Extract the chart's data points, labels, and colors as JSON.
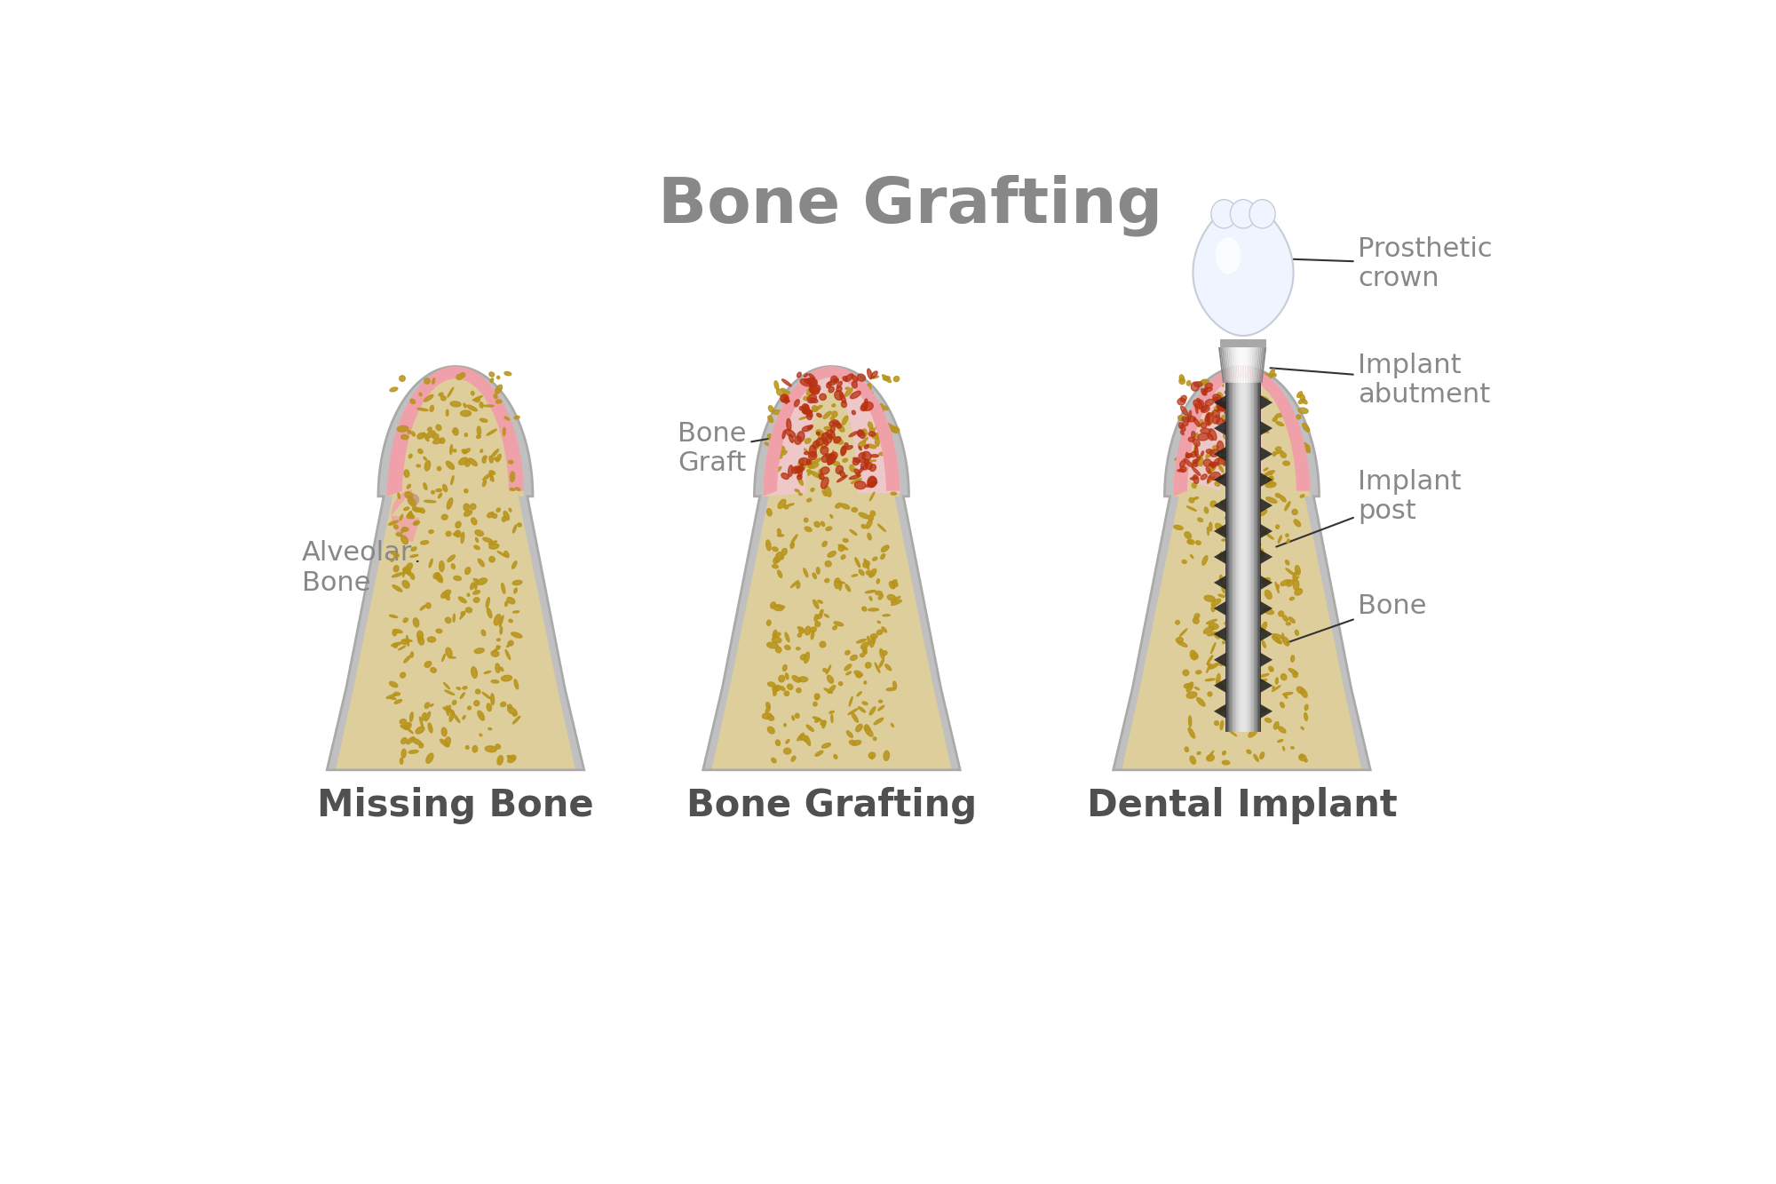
{
  "title": "Bone Grafting",
  "title_color": "#888888",
  "title_fontsize": 52,
  "title_fontweight": "bold",
  "bg_color": "#ffffff",
  "label_color": "#888888",
  "label_fontsize": 22,
  "bone_fill": "#dece9c",
  "bone_spot_dark": "#b8941a",
  "bone_spot_light": "#c8a830",
  "outline_color": "#b0b0b0",
  "gum_color": "#f0a0a8",
  "graft_fill": "#f0c8cc",
  "graft_spot": "#b83010",
  "implant_dark": "#404040",
  "implant_mid": "#909090",
  "implant_light": "#d8d8d8",
  "crown_white": "#f0f4ff",
  "crown_gray": "#c8ccd8",
  "caption_fontsize": 30,
  "caption_fontweight": "bold",
  "caption_color": "#505050",
  "captions": [
    "Missing Bone",
    "Bone Grafting",
    "Dental Implant"
  ],
  "annotations": {
    "alveolar_bone": "Alveolar\nBone",
    "bone_graft": "Bone\nGraft",
    "prosthetic_crown": "Prosthetic\ncrown",
    "implant_abutment": "Implant\nabutment",
    "implant_post": "Implant\npost",
    "bone": "Bone"
  }
}
